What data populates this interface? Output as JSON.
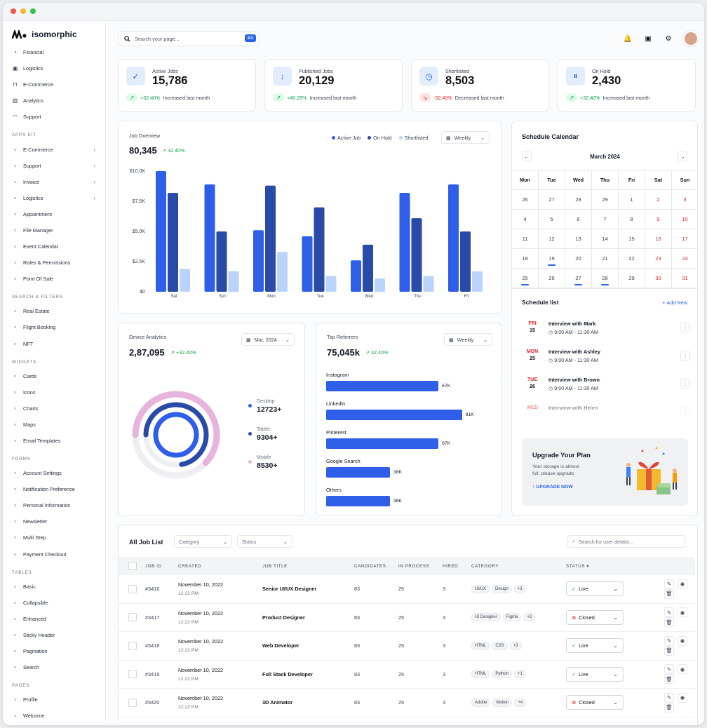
{
  "brand": {
    "name": "isomorphic"
  },
  "sidebar": {
    "top": [
      {
        "label": "Financial",
        "icon": "chart-pie-icon"
      },
      {
        "label": "Logistics",
        "icon": "box-icon"
      },
      {
        "label": "E-Commerce",
        "icon": "cart-icon"
      },
      {
        "label": "Analytics",
        "icon": "analytics-icon"
      },
      {
        "label": "Support",
        "icon": "headset-icon"
      }
    ],
    "sections": [
      {
        "title": "APPS KIT",
        "items": [
          {
            "label": "E-Commerce",
            "chev": true
          },
          {
            "label": "Support",
            "chev": true
          },
          {
            "label": "Invoice",
            "chev": true
          },
          {
            "label": "Logistics",
            "chev": true
          },
          {
            "label": "Appointment"
          },
          {
            "label": "File Manager"
          },
          {
            "label": "Event Calendar"
          },
          {
            "label": "Roles & Permissions"
          },
          {
            "label": "Point Of Sale"
          }
        ]
      },
      {
        "title": "SEARCH & FILTERS",
        "items": [
          {
            "label": "Real Estate"
          },
          {
            "label": "Flight Booking"
          },
          {
            "label": "NFT"
          }
        ]
      },
      {
        "title": "WIDGETS",
        "items": [
          {
            "label": "Cards"
          },
          {
            "label": "Icons"
          },
          {
            "label": "Charts"
          },
          {
            "label": "Maps"
          },
          {
            "label": "Email Templates"
          }
        ]
      },
      {
        "title": "FORMS",
        "items": [
          {
            "label": "Account Settings"
          },
          {
            "label": "Notification Preference"
          },
          {
            "label": "Personal Information"
          },
          {
            "label": "Newsletter"
          },
          {
            "label": "Multi Step"
          },
          {
            "label": "Payment Checkout"
          }
        ]
      },
      {
        "title": "TABLES",
        "items": [
          {
            "label": "Basic"
          },
          {
            "label": "Collapsible"
          },
          {
            "label": "Enhanced"
          },
          {
            "label": "Sticky Header"
          },
          {
            "label": "Pagination"
          },
          {
            "label": "Search"
          }
        ]
      },
      {
        "title": "PAGES",
        "items": [
          {
            "label": "Profile"
          },
          {
            "label": "Welcome"
          }
        ]
      }
    ]
  },
  "header": {
    "search_placeholder": "Search your page...",
    "shortcut": "⌘K"
  },
  "stats": [
    {
      "label": "Active Jobs",
      "value": "15,786",
      "change": "+32.40%",
      "note": "Increased last month",
      "dir": "up"
    },
    {
      "label": "Published Jobs",
      "value": "20,129",
      "change": "+40.29%",
      "note": "Increased last month",
      "dir": "up"
    },
    {
      "label": "Shortlisted",
      "value": "8,503",
      "change": "-32.40%",
      "note": "Decreased last month",
      "dir": "down"
    },
    {
      "label": "On Hold",
      "value": "2,430",
      "change": "+32.40%",
      "note": "Increased last month",
      "dir": "up"
    }
  ],
  "job_overview": {
    "title": "Job Overview",
    "total": "80,345",
    "change": "32.40%",
    "period": "Weekly"
  },
  "device": {
    "title": "Device Analytics",
    "total": "2,87,095",
    "change": "+32.40%",
    "date": "Mar, 2024",
    "legend": [
      {
        "name": "Desktop",
        "value": "12723+",
        "color": "#2f5fe8"
      },
      {
        "name": "Tablet",
        "value": "9304+",
        "color": "#2a4aa8"
      },
      {
        "name": "Mobile",
        "value": "8530+",
        "color": "#e6b4dc"
      }
    ]
  },
  "referrers": {
    "title": "Top Referrers",
    "total": "75,045k",
    "change": "32.40%",
    "period": "Weekly"
  },
  "calendar": {
    "title": "Schedule Calendar",
    "month": "March 2024",
    "days": [
      "Mon",
      "Tue",
      "Wed",
      "Thu",
      "Fri",
      "Sat",
      "Sun"
    ],
    "weeks": [
      [
        "26",
        "27",
        "28",
        "29",
        "1",
        "2",
        "3"
      ],
      [
        "4",
        "5",
        "6",
        "7",
        "8",
        "9",
        "10"
      ],
      [
        "11",
        "12",
        "13",
        "14",
        "15",
        "16",
        "17"
      ],
      [
        "18",
        "19",
        "20",
        "21",
        "22",
        "23",
        "24"
      ],
      [
        "25",
        "26",
        "27",
        "28",
        "29",
        "30",
        "31"
      ]
    ]
  },
  "schedule": {
    "title": "Schedule list",
    "add": "+ Add New",
    "items": [
      {
        "day": "FRI",
        "date": "15",
        "title": "Interview with Mark",
        "time": "9:00 AM - 11:30 AM"
      },
      {
        "day": "MON",
        "date": "25",
        "title": "Interview with Ashley",
        "time": "9:00 AM - 11:30 AM"
      },
      {
        "day": "TUE",
        "date": "26",
        "title": "Interview with Brown",
        "time": "9:00 AM - 11:30 AM"
      },
      {
        "day": "WED",
        "date": "",
        "title": "Interview with Helen",
        "time": ""
      }
    ]
  },
  "upgrade": {
    "title": "Upgrade Your Plan",
    "text1": "Your storage is almost",
    "text2": "full, please upgrade",
    "cta": "UPGRADE NOW"
  },
  "joblist": {
    "title": "All Job List",
    "category": "Category",
    "status": "Status",
    "search_placeholder": "Search for user details...",
    "headers": [
      "JOB ID",
      "CREATED",
      "JOB TITLE",
      "CANDIDATES",
      "IN PROCESS",
      "HIRED",
      "CATEGORY",
      "STATUS ▾"
    ],
    "rows": [
      {
        "id": "#3416",
        "date": "November 10, 2022",
        "time": "12:22 PM",
        "title": "Senior UI/UX Designer",
        "cand": "83",
        "proc": "25",
        "hired": "3",
        "tags": [
          "UI/UX",
          "Design",
          "+3"
        ],
        "status": "Live"
      },
      {
        "id": "#3417",
        "date": "November 10, 2022",
        "time": "12:22 PM",
        "title": "Product Designer",
        "cand": "83",
        "proc": "25",
        "hired": "3",
        "tags": [
          "UI Designer",
          "Figma",
          "+2"
        ],
        "status": "Closed"
      },
      {
        "id": "#3418",
        "date": "November 10, 2022",
        "time": "12:22 PM",
        "title": "Web Developer",
        "cand": "83",
        "proc": "25",
        "hired": "3",
        "tags": [
          "HTML",
          "CSS",
          "+3"
        ],
        "status": "Live"
      },
      {
        "id": "#3419",
        "date": "November 10, 2022",
        "time": "12:22 PM",
        "title": "Full Stack Developer",
        "cand": "83",
        "proc": "25",
        "hired": "3",
        "tags": [
          "HTML",
          "Python",
          "+1"
        ],
        "status": "Live"
      },
      {
        "id": "#3420",
        "date": "November 10, 2022",
        "time": "12:22 PM",
        "title": "3D Animator",
        "cand": "83",
        "proc": "25",
        "hired": "3",
        "tags": [
          "Adobe",
          "Motion",
          "+4"
        ],
        "status": "Closed"
      }
    ]
  },
  "chart_data": [
    {
      "type": "bar",
      "title": "Job Overview",
      "categories": [
        "Sat",
        "Sun",
        "Mon",
        "Tue",
        "Wed",
        "Thu",
        "Fri"
      ],
      "ylim": [
        0,
        10000
      ],
      "yticks": [
        "$0",
        "$2.5K",
        "$5.0K",
        "$7.5K",
        "$10.0K"
      ],
      "series": [
        {
          "name": "Active Job",
          "color": "#2f5fe8",
          "values": [
            10000,
            8900,
            5100,
            4600,
            2600,
            8200,
            8900
          ]
        },
        {
          "name": "On Hold",
          "color": "#2a4aa8",
          "values": [
            8200,
            5000,
            8800,
            7000,
            3900,
            6100,
            5000
          ]
        },
        {
          "name": "Shortlisted",
          "color": "#b9d3fb",
          "values": [
            1900,
            1700,
            3300,
            1300,
            1100,
            1300,
            1700
          ]
        }
      ]
    },
    {
      "type": "bar",
      "title": "Top Referrers",
      "orientation": "horizontal",
      "categories": [
        "Instagram",
        "Linkedin",
        "Pinterest",
        "Google Search",
        "Others"
      ],
      "values": [
        67,
        81,
        67,
        38,
        38
      ],
      "labels": [
        "67K",
        "81K",
        "67K",
        "38K",
        "38K"
      ],
      "color": "#2f5fe8",
      "xlim": [
        0,
        100
      ]
    },
    {
      "type": "pie",
      "title": "Device Analytics",
      "categories": [
        "Desktop",
        "Tablet",
        "Mobile"
      ],
      "values": [
        12723,
        9304,
        8530
      ]
    }
  ]
}
